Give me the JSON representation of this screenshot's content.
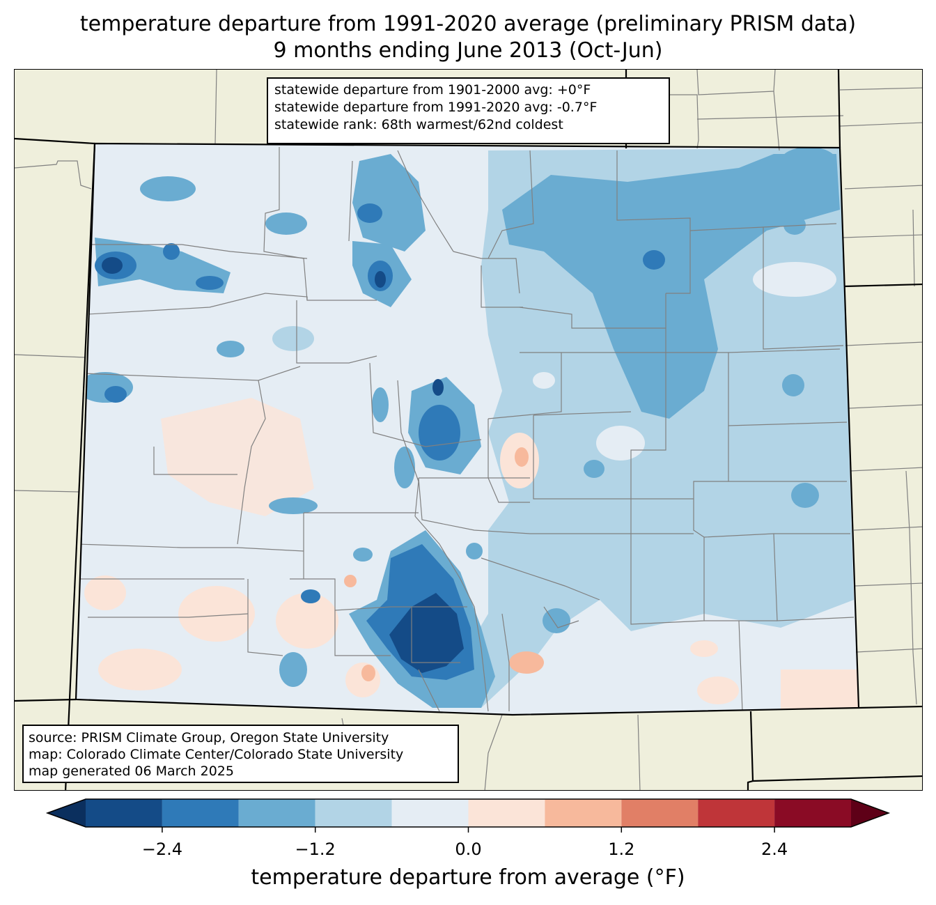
{
  "title": {
    "line1": "temperature departure from 1991-2020 average (preliminary PRISM data)",
    "line2": "9 months ending June 2013 (Oct-Jun)"
  },
  "stats": {
    "line1": "statewide departure from 1901-2000 avg: +0°F",
    "line2": "statewide departure from 1991-2020 avg: -0.7°F",
    "line3": "statewide rank: 68th warmest/62nd coldest"
  },
  "source": {
    "line1": "source: PRISM Climate Group, Oregon State University",
    "line2": "map: Colorado Climate Center/Colorado State University",
    "line3": "map generated 06 March 2025"
  },
  "colorbar": {
    "label": "temperature departure from average (°F)",
    "boundaries": [
      -3.0,
      -2.4,
      -1.8,
      -1.2,
      -0.6,
      0.0,
      0.6,
      1.2,
      1.8,
      2.4,
      3.0
    ],
    "colors": [
      "#144b87",
      "#2f7ab8",
      "#6aacd1",
      "#b2d4e6",
      "#e5edf4",
      "#fbe4d8",
      "#f7b99c",
      "#e17f66",
      "#bf3539",
      "#8a0b25"
    ],
    "under_color": "#0b2f5e",
    "over_color": "#5e0017",
    "ticks": [
      "−2.4",
      "−1.2",
      "0.0",
      "1.2",
      "2.4"
    ],
    "tick_values": [
      -2.4,
      -1.2,
      0.0,
      1.2,
      2.4
    ]
  },
  "map_colors": {
    "land_outside": "#efefdc",
    "county_lines": "#808080",
    "state_lines": "#000000"
  }
}
